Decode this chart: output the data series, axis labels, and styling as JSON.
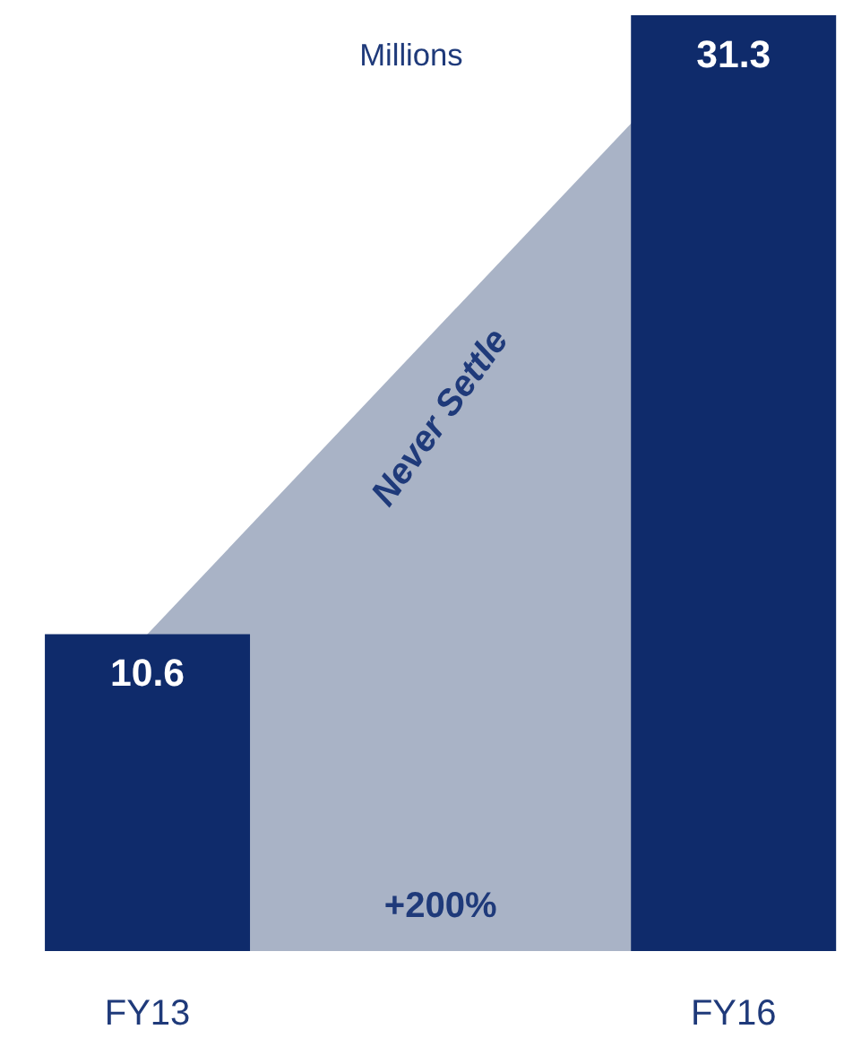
{
  "chart_data": {
    "type": "bar",
    "ylabel": "Millions",
    "categories": [
      "FY13",
      "FY16"
    ],
    "series": [
      {
        "type": "area",
        "color": "#a9b3c6",
        "values": [
          10.6,
          31.3
        ]
      },
      {
        "color": "#0f2b6b",
        "values": [
          10.6,
          31.3
        ],
        "data_labels": true
      }
    ],
    "annotations": [
      "Never Settle",
      "+200%"
    ]
  }
}
